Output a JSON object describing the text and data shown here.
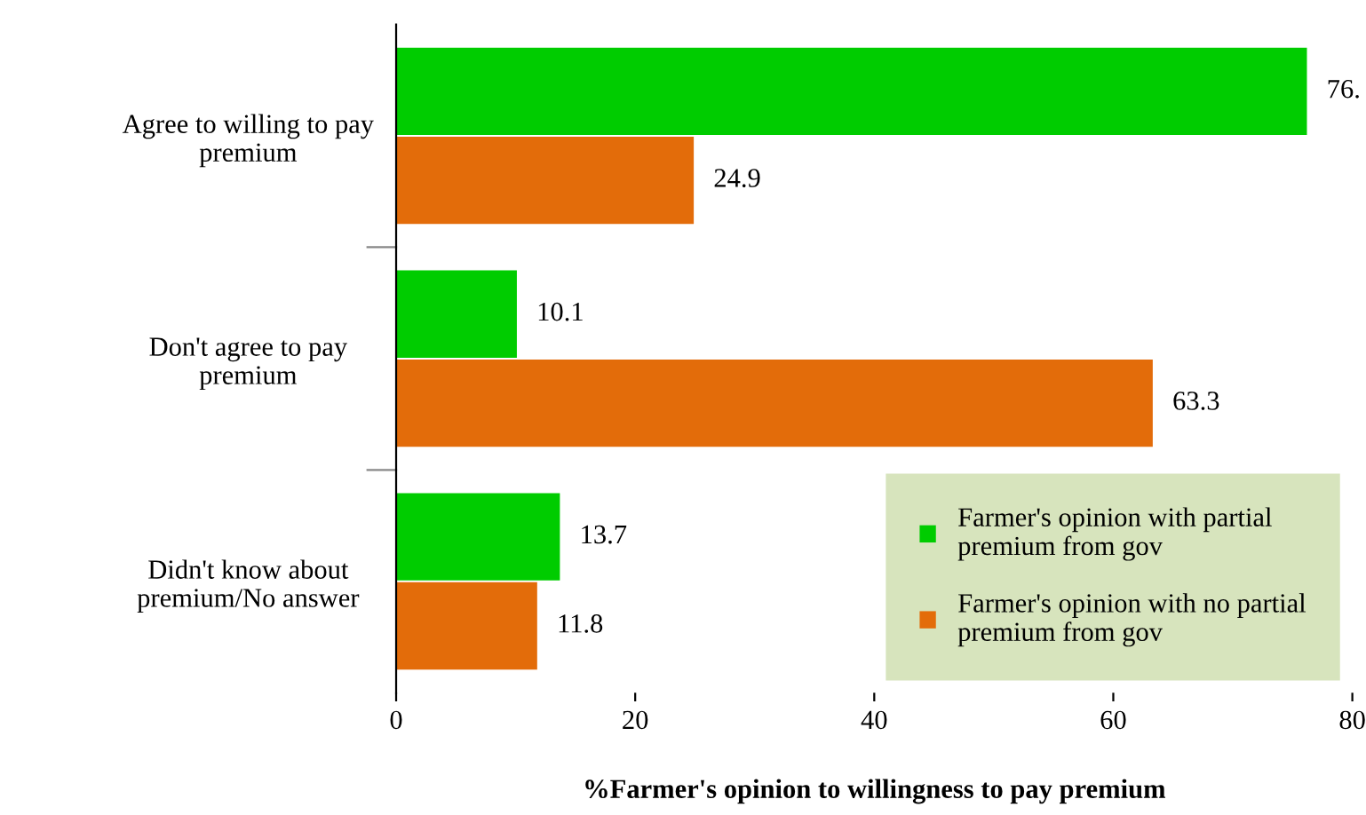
{
  "chart_data": {
    "type": "bar",
    "orientation": "horizontal",
    "xlabel": "%Farmer's opinion to willingness to pay premium",
    "categories": [
      "Agree to willing to pay\npremium",
      "Don't agree to pay\npremium",
      "Didn't know about\npremium/No answer"
    ],
    "series": [
      {
        "name": "Farmer's opinion with partial\npremium from gov",
        "color": "#00cc00",
        "values": [
          76.2,
          10.1,
          13.7
        ],
        "value_labels": [
          "76.",
          "10.1",
          "13.7"
        ]
      },
      {
        "name": "Farmer's opinion with no partial\npremium from gov",
        "color": "#e36c0a",
        "values": [
          24.9,
          63.3,
          11.8
        ],
        "value_labels": [
          "24.9",
          "63.3",
          "11.8"
        ]
      }
    ],
    "xlim": [
      0,
      80
    ],
    "xticks": [
      0,
      20,
      40,
      60,
      80
    ],
    "grid": false,
    "legend": "bottom right"
  }
}
